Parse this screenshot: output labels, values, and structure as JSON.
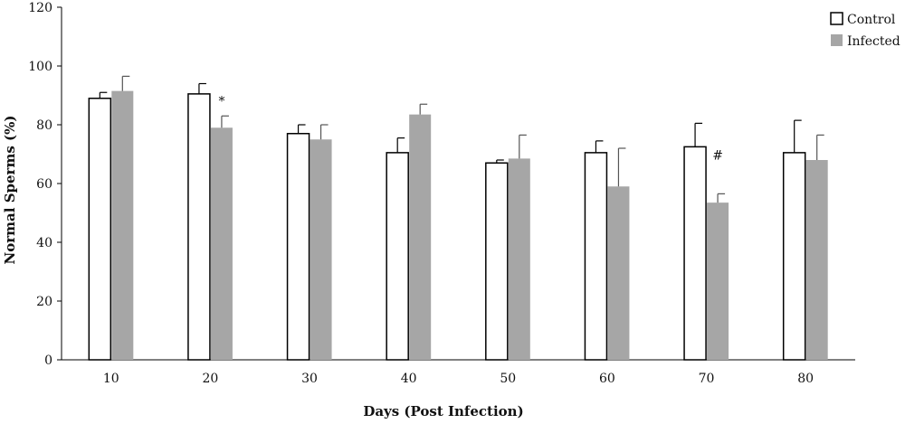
{
  "chart_data": {
    "type": "bar",
    "title": "",
    "xlabel": "Days (Post Infection)",
    "ylabel": "Normal Sperms (%)",
    "ylim": [
      0,
      120
    ],
    "yticks": [
      "0",
      "20",
      "40",
      "60",
      "80",
      "100",
      "120"
    ],
    "categories": [
      "10",
      "20",
      "30",
      "40",
      "50",
      "60",
      "70",
      "80"
    ],
    "series": [
      {
        "name": "Control",
        "fill": "#ffffff",
        "stroke": "#000000",
        "values": [
          89,
          90.5,
          77,
          70.5,
          67,
          70.5,
          72.5,
          70.5
        ],
        "error": [
          2,
          3.5,
          3,
          5,
          1,
          4,
          8,
          11
        ]
      },
      {
        "name": "Infected",
        "fill": "#a6a6a6",
        "stroke": "#a6a6a6",
        "values": [
          91.5,
          79,
          75,
          83.5,
          68.5,
          59,
          53.5,
          68
        ],
        "error": [
          5,
          4,
          5,
          3.5,
          8,
          13,
          3,
          8.5
        ]
      }
    ],
    "annotations": [
      {
        "category": "20",
        "text": "*"
      },
      {
        "category": "70",
        "text": "#"
      }
    ],
    "legend_position": "top-right",
    "grid": false
  }
}
